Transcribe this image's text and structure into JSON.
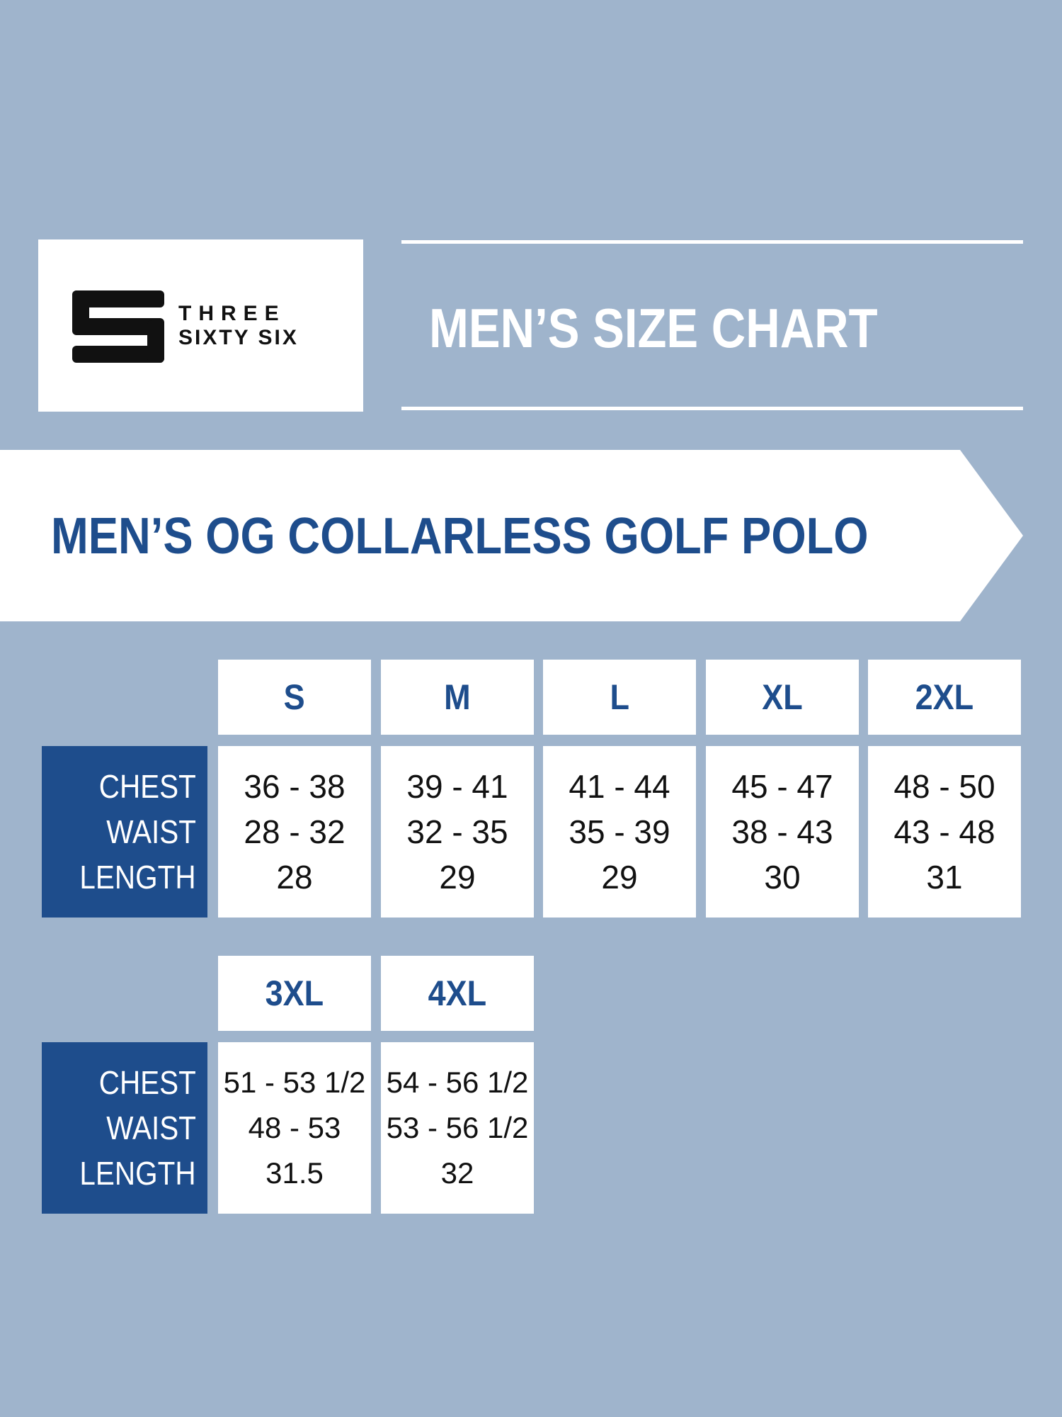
{
  "brand": {
    "line1": "THREE",
    "line2": "SIXTY SIX",
    "logo_icon": "three-sixty-six-s-logo-icon"
  },
  "header": {
    "title": "MEN’S SIZE CHART"
  },
  "banner": {
    "product_title": "MEN’S OG COLLARLESS GOLF POLO"
  },
  "colors": {
    "background": "#9fb4cc",
    "brand_blue": "#1e4d8c",
    "panel": "#ffffff",
    "text_dark": "#111111"
  },
  "row_labels": [
    "CHEST",
    "WAIST",
    "LENGTH"
  ],
  "tables": [
    {
      "sizes": [
        {
          "size": "S",
          "chest": "36 - 38",
          "waist": "28 - 32",
          "length": "28"
        },
        {
          "size": "M",
          "chest": "39 - 41",
          "waist": "32 - 35",
          "length": "29"
        },
        {
          "size": "L",
          "chest": "41 - 44",
          "waist": "35 - 39",
          "length": "29"
        },
        {
          "size": "XL",
          "chest": "45 - 47",
          "waist": "38 - 43",
          "length": "30"
        },
        {
          "size": "2XL",
          "chest": "48 - 50",
          "waist": "43 - 48",
          "length": "31"
        }
      ]
    },
    {
      "sizes": [
        {
          "size": "3XL",
          "chest": "51 - 53 1/2",
          "waist": "48 - 53",
          "length": "31.5"
        },
        {
          "size": "4XL",
          "chest": "54 - 56 1/2",
          "waist": "53 - 56 1/2",
          "length": "32"
        }
      ]
    }
  ]
}
